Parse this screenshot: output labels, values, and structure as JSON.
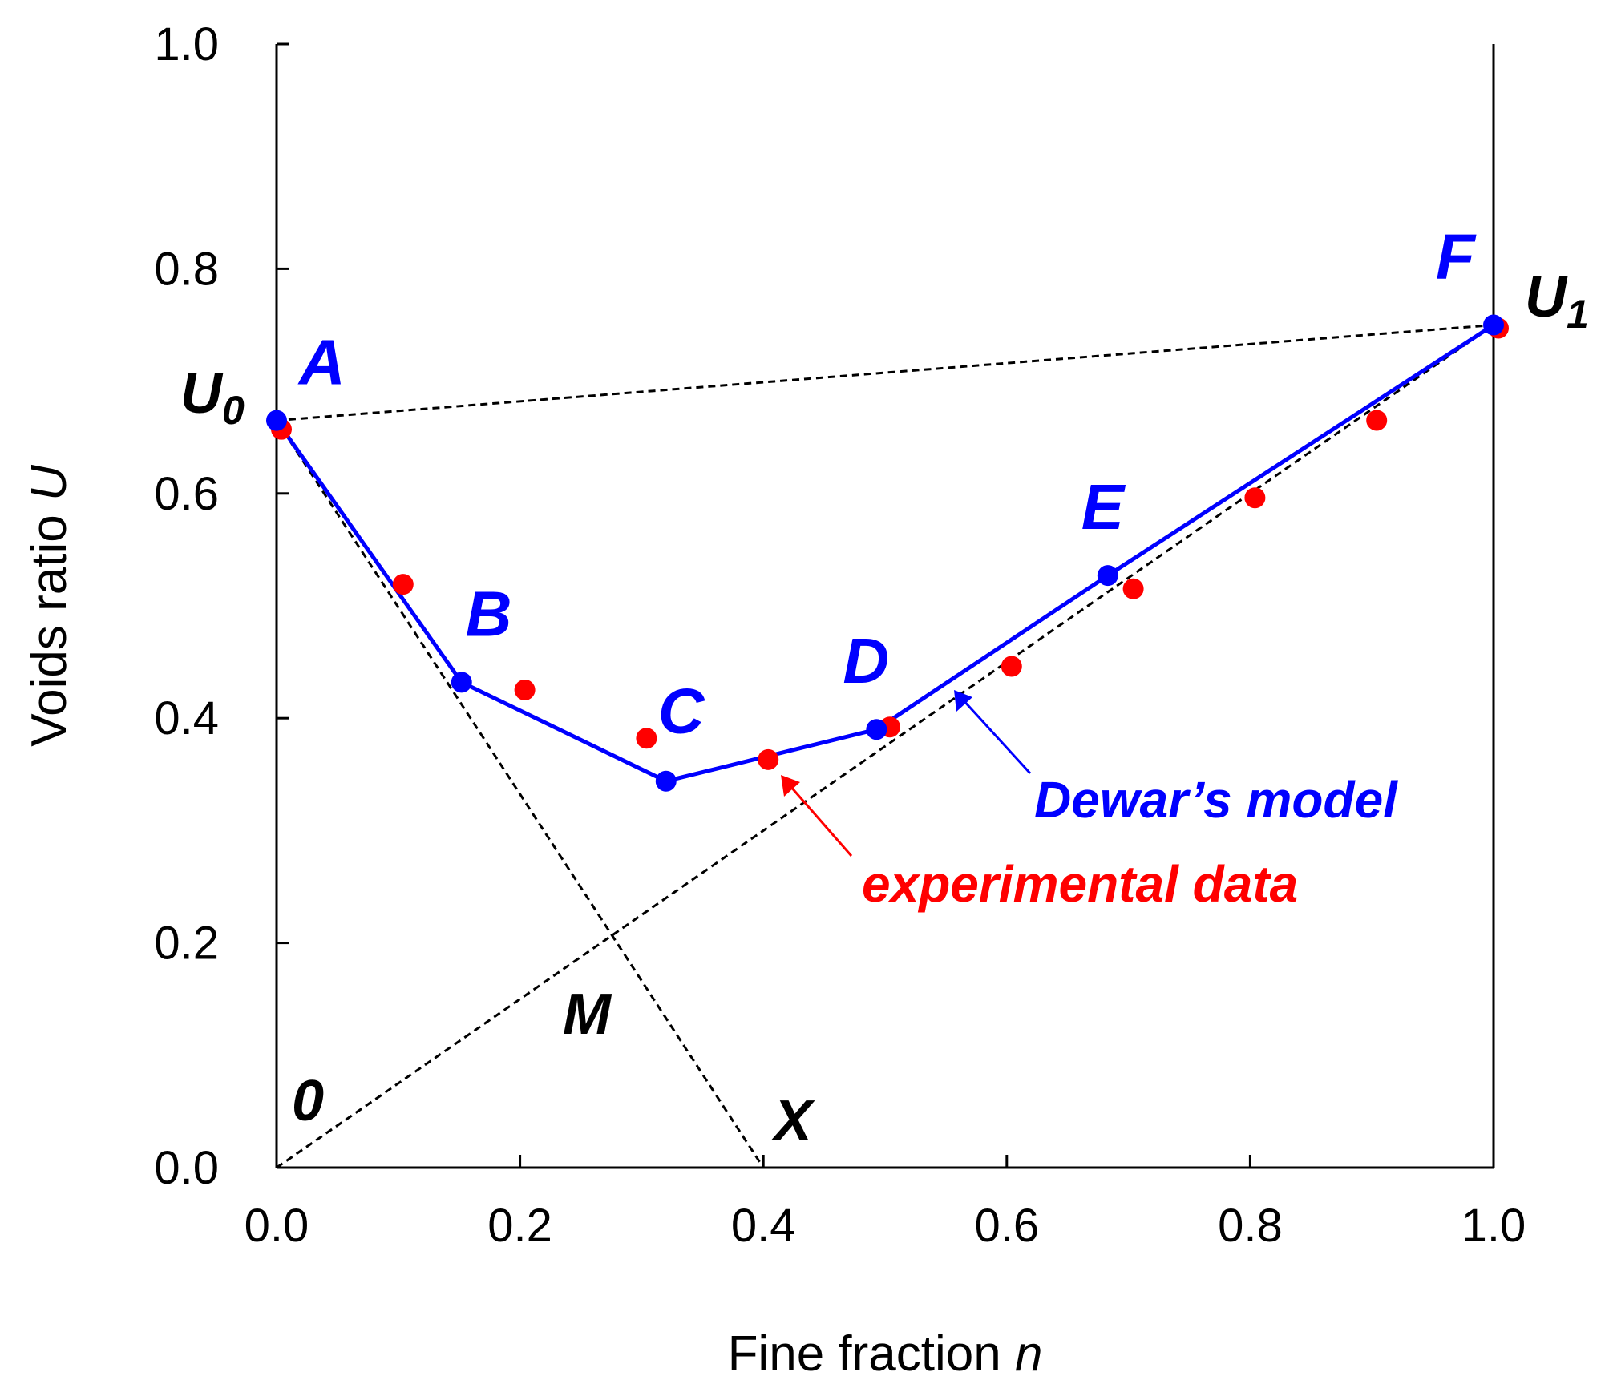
{
  "chart_data": {
    "type": "line",
    "xlabel": "Fine fraction",
    "xlabel_var": "n",
    "ylabel": "Voids ratio",
    "ylabel_var": "U",
    "xlim": [
      0,
      1
    ],
    "ylim": [
      0,
      1
    ],
    "xticks": [
      "0.0",
      "0.2",
      "0.4",
      "0.6",
      "0.8",
      "1.0"
    ],
    "yticks": [
      "0.0",
      "0.2",
      "0.4",
      "0.6",
      "0.8",
      "1.0"
    ],
    "series": [
      {
        "name": "Dewar's model",
        "color": "#0000ff",
        "points": [
          {
            "label": "A",
            "x": 0.0,
            "y": 0.665
          },
          {
            "label": "B",
            "x": 0.152,
            "y": 0.432
          },
          {
            "label": "C",
            "x": 0.32,
            "y": 0.344
          },
          {
            "label": "D",
            "x": 0.493,
            "y": 0.39
          },
          {
            "label": "E",
            "x": 0.683,
            "y": 0.527
          },
          {
            "label": "F",
            "x": 1.0,
            "y": 0.75
          }
        ]
      },
      {
        "name": "experimental data",
        "color": "#ff0000",
        "x": [
          0.0,
          0.1,
          0.2,
          0.3,
          0.4,
          0.5,
          0.6,
          0.7,
          0.8,
          0.9,
          1.0
        ],
        "y": [
          0.66,
          0.522,
          0.428,
          0.385,
          0.366,
          0.395,
          0.449,
          0.518,
          0.599,
          0.668,
          0.75
        ]
      }
    ],
    "reference_lines": [
      {
        "name": "U0-U1 line",
        "x": [
          0.0,
          1.0
        ],
        "y": [
          0.665,
          0.75
        ]
      },
      {
        "name": "U0-X line",
        "x": [
          0.0,
          0.4
        ],
        "y": [
          0.665,
          0.0
        ]
      },
      {
        "name": "0-U1 line",
        "x": [
          0.0,
          1.0
        ],
        "y": [
          0.0,
          0.75
        ]
      }
    ],
    "annotations": {
      "u0": "U",
      "u0_sub": "0",
      "u1": "U",
      "u1_sub": "1",
      "origin": "0",
      "m": "M",
      "x": "X",
      "model_label": "Dewar’s model",
      "data_label": "experimental data"
    }
  }
}
